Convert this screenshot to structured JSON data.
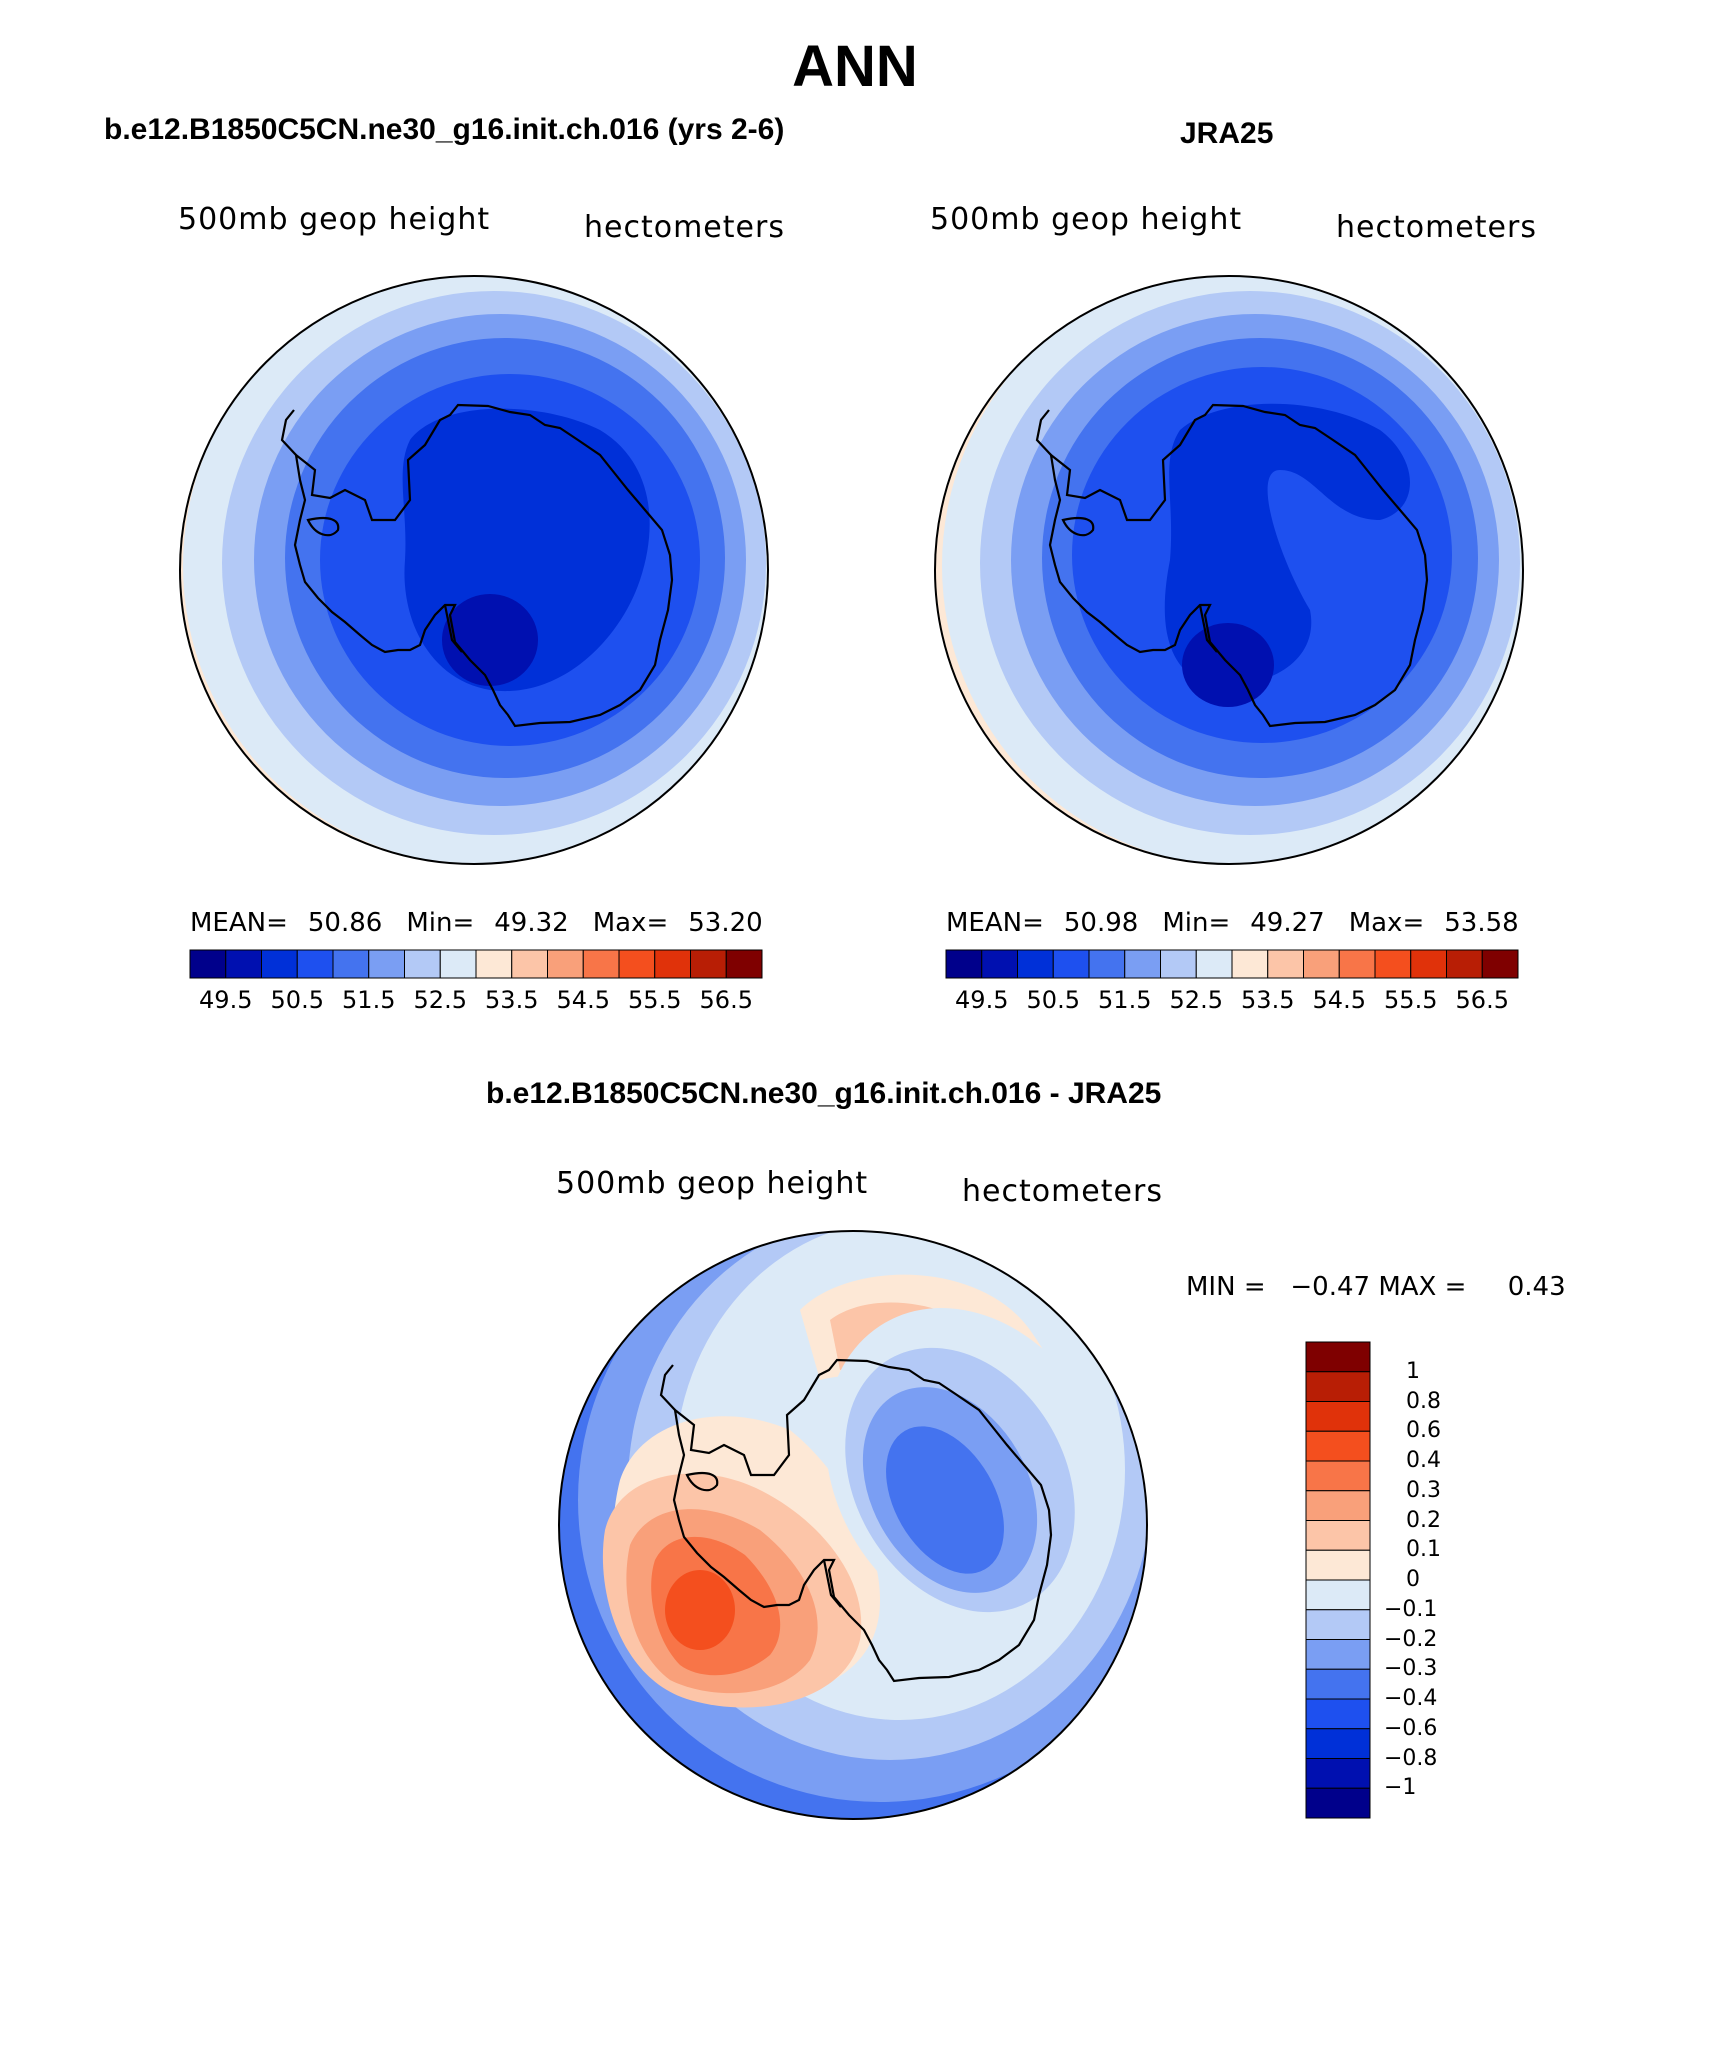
{
  "title": "ANN",
  "panels": [
    {
      "title": "b.e12.B1850C5CN.ne30_g16.init.ch.016 (yrs 2-6)",
      "subtitle_left": "500mb geop height",
      "subtitle_right": "hectometers",
      "mean_label": "MEAN=",
      "mean": "50.86",
      "min_label": "Min=",
      "min": "49.32",
      "max_label": "Max=",
      "max": "53.20"
    },
    {
      "title": "JRA25",
      "subtitle_left": "500mb geop height",
      "subtitle_right": "hectometers",
      "mean_label": "MEAN=",
      "mean": "50.98",
      "min_label": "Min=",
      "min": "49.27",
      "max_label": "Max=",
      "max": "53.58"
    }
  ],
  "diff_panel": {
    "title": "b.e12.B1850C5CN.ne30_g16.init.ch.016 - JRA25",
    "subtitle_left": "500mb geop height",
    "subtitle_right": "hectometers",
    "minmax": "MIN =   −0.47 MAX =     0.43"
  },
  "colorbar_main": {
    "colors": [
      "#00008b",
      "#0010b0",
      "#0030d8",
      "#1e50ef",
      "#4473ef",
      "#7a9ef3",
      "#b3c9f6",
      "#dceaf7",
      "#fde8d6",
      "#fcc5a8",
      "#f9a07a",
      "#f87548",
      "#f44f1e",
      "#e0320a",
      "#b81e05",
      "#7f0000"
    ],
    "tick_labels": [
      "49.5",
      "50.5",
      "51.5",
      "52.5",
      "53.5",
      "54.5",
      "55.5",
      "56.5"
    ]
  },
  "colorbar_diff": {
    "colors": [
      "#7f0000",
      "#b81e05",
      "#e0320a",
      "#f44f1e",
      "#f87548",
      "#f9a07a",
      "#fcc5a8",
      "#fde8d6",
      "#dceaf7",
      "#b3c9f6",
      "#7a9ef3",
      "#4473ef",
      "#1e50ef",
      "#0030d8",
      "#0010b0",
      "#00008b"
    ],
    "tick_labels": [
      "1",
      "0.8",
      "0.6",
      "0.4",
      "0.3",
      "0.2",
      "0.1",
      "0",
      "−0.1",
      "−0.2",
      "−0.3",
      "−0.4",
      "−0.6",
      "−0.8",
      "−1"
    ]
  }
}
